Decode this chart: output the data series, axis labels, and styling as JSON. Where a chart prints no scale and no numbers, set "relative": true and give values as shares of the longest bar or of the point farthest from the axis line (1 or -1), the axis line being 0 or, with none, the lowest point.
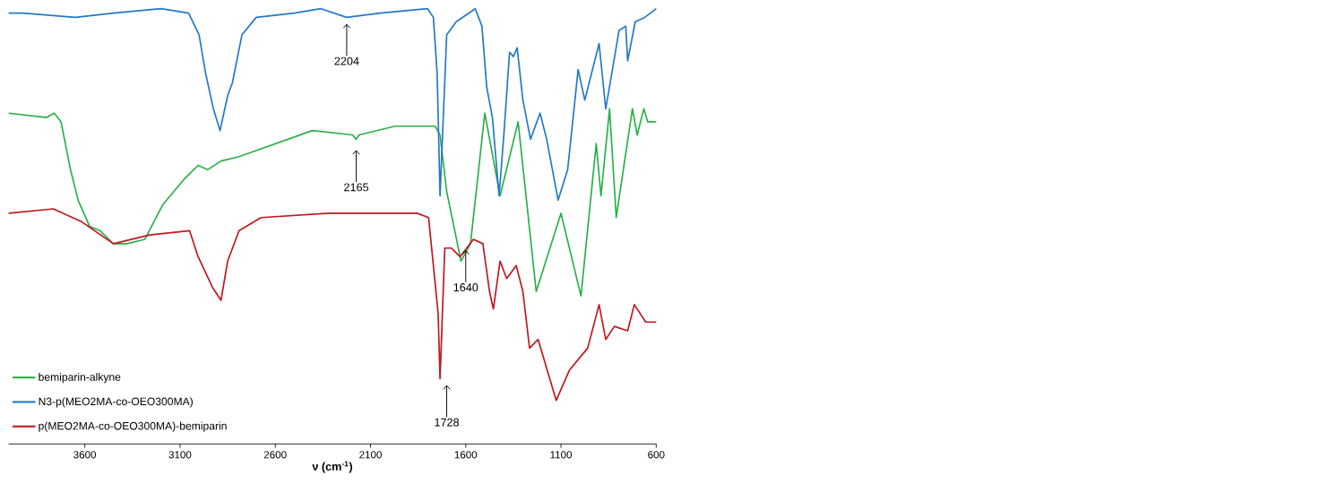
{
  "chart_data": {
    "type": "line",
    "relative": true,
    "xlabel": "ν (cm$^{-1}$)",
    "xlim": [
      4000,
      600
    ],
    "xticks": [
      3600,
      3100,
      2600,
      2100,
      1600,
      1100,
      600
    ],
    "legend": "bottom left",
    "grid": false,
    "marker": "none",
    "line_style": "solid",
    "series": [
      {
        "name": "bemiparin-alkyne",
        "color": "#2bb04a",
        "x": [
          4000,
          3800,
          3760,
          3725,
          3675,
          3635,
          3575,
          3520,
          3450,
          3380,
          3285,
          3190,
          3075,
          3005,
          2955,
          2885,
          2790,
          2405,
          2195,
          2175,
          2160,
          1970,
          1760,
          1735,
          1700,
          1625,
          1575,
          1500,
          1420,
          1325,
          1230,
          1100,
          995,
          915,
          890,
          845,
          810,
          725,
          700,
          665,
          645,
          600
        ],
        "values": [
          0.76,
          0.75,
          0.76,
          0.74,
          0.63,
          0.56,
          0.5,
          0.49,
          0.46,
          0.46,
          0.47,
          0.55,
          0.61,
          0.64,
          0.63,
          0.65,
          0.66,
          0.72,
          0.71,
          0.7,
          0.71,
          0.73,
          0.73,
          0.71,
          0.58,
          0.42,
          0.46,
          0.76,
          0.57,
          0.74,
          0.35,
          0.53,
          0.34,
          0.69,
          0.57,
          0.77,
          0.52,
          0.77,
          0.71,
          0.77,
          0.74,
          0.74
        ]
      },
      {
        "name": "N3-p(MEO2MA-co-OEO300MA)",
        "color": "#2479c6",
        "x": [
          4000,
          3925,
          3650,
          3450,
          3200,
          3055,
          3000,
          2965,
          2925,
          2890,
          2850,
          2825,
          2775,
          2700,
          2500,
          2360,
          2225,
          2050,
          1800,
          1770,
          1750,
          1735,
          1700,
          1650,
          1550,
          1515,
          1490,
          1460,
          1425,
          1400,
          1370,
          1350,
          1330,
          1300,
          1260,
          1210,
          1175,
          1115,
          1065,
          1010,
          975,
          900,
          865,
          795,
          760,
          750,
          710,
          660,
          600
        ],
        "values": [
          0.99,
          0.99,
          0.98,
          0.99,
          1.0,
          0.99,
          0.94,
          0.85,
          0.77,
          0.72,
          0.8,
          0.83,
          0.94,
          0.98,
          0.99,
          1.0,
          0.98,
          0.99,
          1.0,
          0.98,
          0.85,
          0.57,
          0.94,
          0.97,
          1.0,
          0.96,
          0.82,
          0.75,
          0.57,
          0.71,
          0.9,
          0.89,
          0.91,
          0.79,
          0.7,
          0.76,
          0.7,
          0.56,
          0.63,
          0.86,
          0.79,
          0.92,
          0.77,
          0.95,
          0.96,
          0.88,
          0.97,
          0.98,
          1.0
        ]
      },
      {
        "name": "p(MEO2MA-co-OEO300MA)-bemiparin",
        "color": "#c01820",
        "x": [
          4000,
          3765,
          3615,
          3450,
          3260,
          3050,
          3005,
          2930,
          2885,
          2850,
          2790,
          2675,
          2320,
          1855,
          1795,
          1745,
          1735,
          1710,
          1675,
          1630,
          1560,
          1510,
          1475,
          1455,
          1420,
          1385,
          1335,
          1300,
          1265,
          1220,
          1125,
          1055,
          960,
          900,
          865,
          820,
          750,
          715,
          655,
          600
        ],
        "values": [
          0.53,
          0.54,
          0.51,
          0.46,
          0.48,
          0.49,
          0.43,
          0.36,
          0.33,
          0.42,
          0.49,
          0.52,
          0.53,
          0.53,
          0.52,
          0.3,
          0.15,
          0.45,
          0.45,
          0.43,
          0.47,
          0.46,
          0.35,
          0.31,
          0.42,
          0.38,
          0.41,
          0.35,
          0.22,
          0.24,
          0.1,
          0.17,
          0.22,
          0.32,
          0.24,
          0.27,
          0.26,
          0.32,
          0.28,
          0.28
        ]
      }
    ],
    "annotations": [
      {
        "text": "2204",
        "x": 2225,
        "y": 0.97
      },
      {
        "text": "2165",
        "x": 2175,
        "y": 0.68
      },
      {
        "text": "1640",
        "x": 1600,
        "y": 0.45
      },
      {
        "text": "1728",
        "x": 1700,
        "y": 0.14
      }
    ]
  }
}
